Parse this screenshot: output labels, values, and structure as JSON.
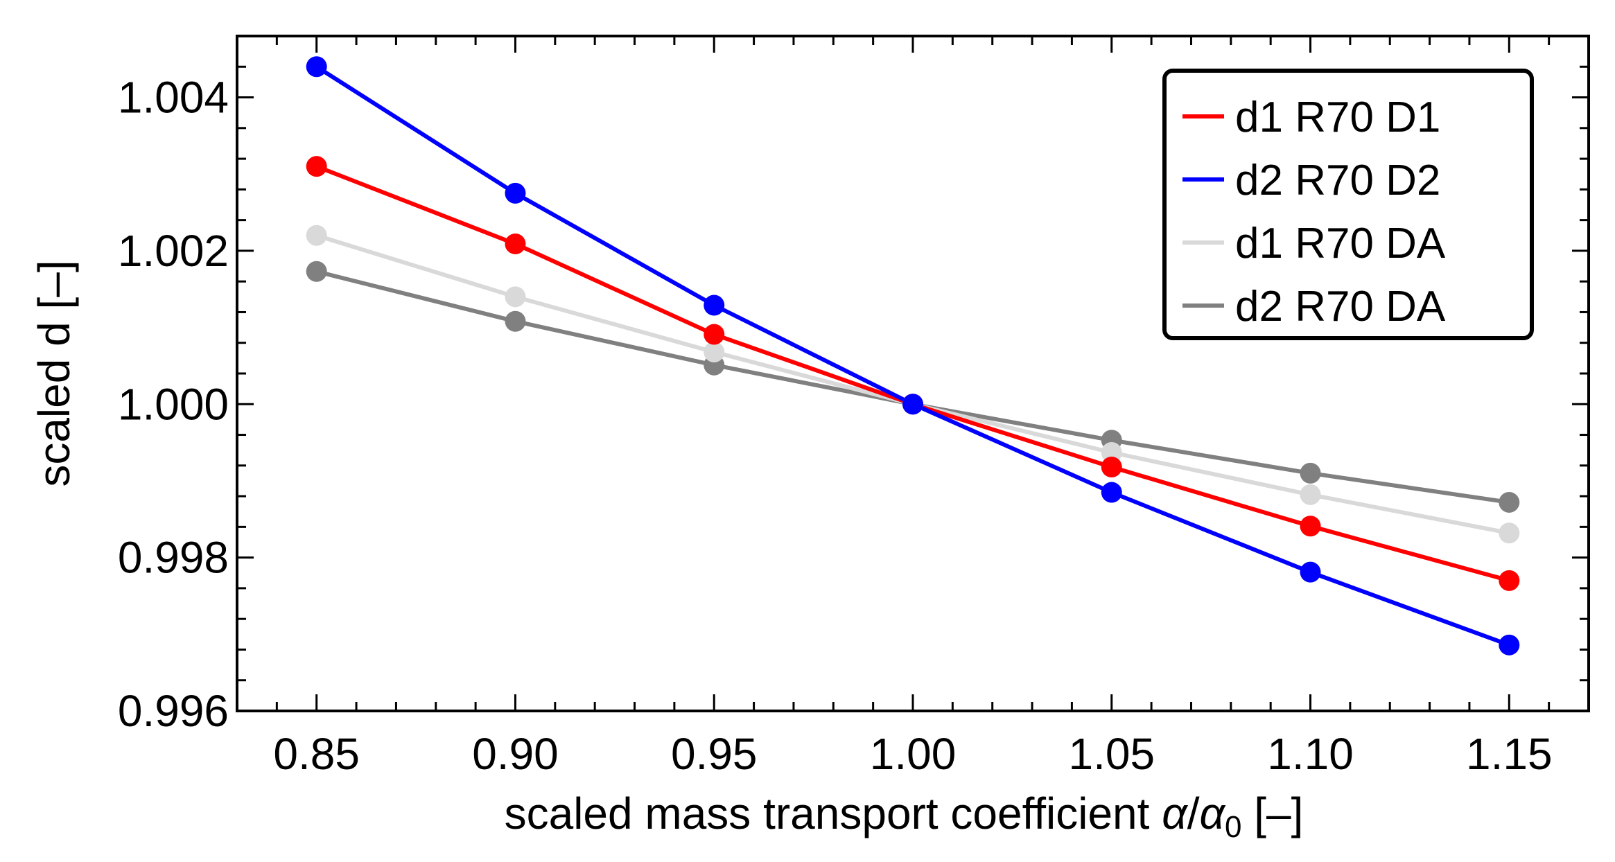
{
  "chart_data": {
    "type": "line",
    "title": "",
    "xlabel_text": "scaled mass transport coefficient ",
    "xlabel_alpha": "α",
    "xlabel_sep": "/",
    "xlabel_alpha0": "α",
    "xlabel_sub": "0",
    "xlabel_unit": " [–]",
    "ylabel": "scaled d [–]",
    "xlim": [
      0.83,
      1.17
    ],
    "ylim": [
      0.996,
      1.0048
    ],
    "x": [
      0.85,
      0.9,
      0.95,
      1.0,
      1.05,
      1.1,
      1.15
    ],
    "x_ticks": [
      0.85,
      0.9,
      0.95,
      1.0,
      1.05,
      1.1,
      1.15
    ],
    "x_tick_labels": [
      "0.85",
      "0.90",
      "0.95",
      "1.00",
      "1.05",
      "1.10",
      "1.15"
    ],
    "y_ticks": [
      0.996,
      0.998,
      1.0,
      1.002,
      1.004
    ],
    "y_tick_labels": [
      "0.996",
      "0.998",
      "1.000",
      "1.002",
      "1.004"
    ],
    "grid": false,
    "legend_position": "top-right",
    "series": [
      {
        "name": "d1 R70 D1",
        "color": "#ff0000",
        "values": [
          1.0031,
          1.00209,
          1.00091,
          1.0,
          0.99918,
          0.99841,
          0.9977
        ]
      },
      {
        "name": "d2 R70 D2",
        "color": "#0000ff",
        "values": [
          1.0044,
          1.00275,
          1.00129,
          1.0,
          0.99885,
          0.99781,
          0.99686
        ]
      },
      {
        "name": "d1 R70 DA",
        "color": "#d9d9d9",
        "values": [
          1.0022,
          1.0014,
          1.00068,
          1.0,
          0.99937,
          0.99882,
          0.99832
        ]
      },
      {
        "name": "d2 R70 DA",
        "color": "#808080",
        "values": [
          1.00173,
          1.00108,
          1.00051,
          1.0,
          0.99953,
          0.9991,
          0.99872
        ]
      }
    ]
  }
}
